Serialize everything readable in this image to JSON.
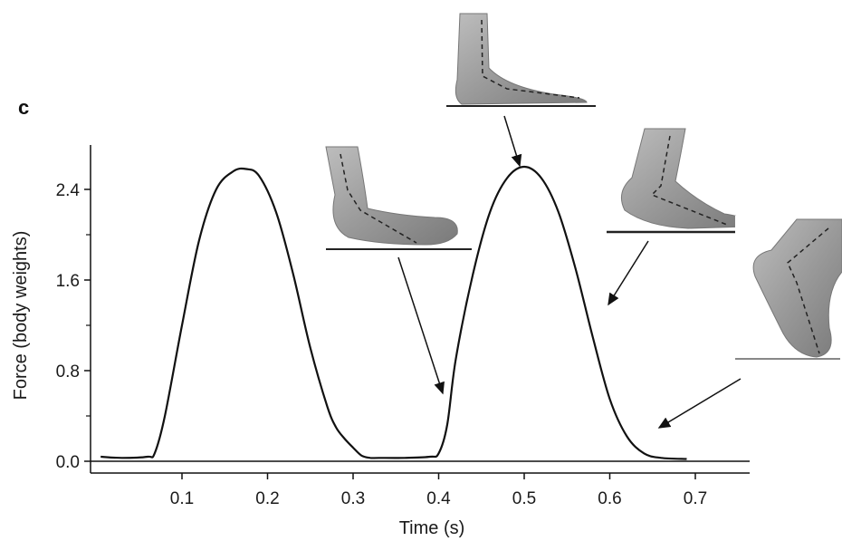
{
  "chart_data": {
    "type": "line",
    "panel_label": "c",
    "xlabel": "Time (s)",
    "ylabel": "Force (body weights)",
    "xlim": [
      0.0,
      0.76
    ],
    "ylim": [
      0.0,
      2.6
    ],
    "x_ticks": [
      0.1,
      0.2,
      0.3,
      0.4,
      0.5,
      0.6,
      0.7
    ],
    "x_tick_labels": [
      "0.1",
      "0.2",
      "0.3",
      "0.4",
      "0.5",
      "0.6",
      "0.7"
    ],
    "y_ticks": [
      0.0,
      0.8,
      1.6,
      2.4
    ],
    "y_tick_labels": [
      "0.0",
      "0.8",
      "1.6",
      "2.4"
    ],
    "baseline_y": 0.0,
    "series": [
      {
        "x": [
          0.005,
          0.03,
          0.06,
          0.068,
          0.08,
          0.1,
          0.12,
          0.14,
          0.16,
          0.175,
          0.19,
          0.21,
          0.23,
          0.25,
          0.27,
          0.28,
          0.29,
          0.3,
          0.31,
          0.32,
          0.33,
          0.36,
          0.39,
          0.4,
          0.41,
          0.42,
          0.44,
          0.46,
          0.48,
          0.5,
          0.52,
          0.54,
          0.56,
          0.58,
          0.6,
          0.62,
          0.64,
          0.66,
          0.69
        ],
        "y": [
          0.04,
          0.03,
          0.04,
          0.07,
          0.4,
          1.2,
          1.95,
          2.4,
          2.56,
          2.58,
          2.52,
          2.2,
          1.65,
          1.0,
          0.48,
          0.3,
          0.2,
          0.12,
          0.05,
          0.03,
          0.03,
          0.03,
          0.04,
          0.07,
          0.32,
          0.9,
          1.65,
          2.2,
          2.5,
          2.6,
          2.5,
          2.2,
          1.7,
          1.1,
          0.55,
          0.22,
          0.07,
          0.03,
          0.02
        ]
      }
    ],
    "annotations": [
      {
        "label": "foot-flat-midstance",
        "point": [
          0.5,
          2.6
        ]
      },
      {
        "label": "foot-heel-strike",
        "point": [
          0.412,
          0.55
        ]
      },
      {
        "label": "foot-heel-off",
        "point": [
          0.595,
          1.35
        ]
      },
      {
        "label": "foot-toe-off",
        "point": [
          0.655,
          0.3
        ]
      }
    ]
  }
}
